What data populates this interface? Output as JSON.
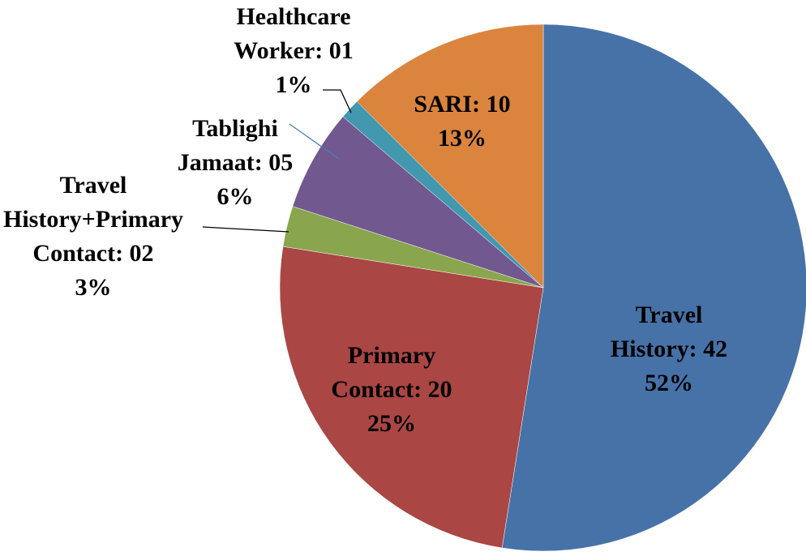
{
  "chart_data": {
    "type": "pie",
    "categories": [
      "Travel History",
      "Primary Contact",
      "Travel History+Primary Contact",
      "Tablighi Jamaat",
      "Healthcare Worker",
      "SARI"
    ],
    "values": [
      42,
      20,
      2,
      5,
      1,
      10
    ],
    "value_labels": [
      "Travel History: 42",
      "Primary Contact: 20",
      "Travel History+Primary Contact: 02",
      "Tablighi Jamaat: 05",
      "Healthcare Worker: 01",
      "SARI: 10"
    ],
    "percent_labels": [
      "52%",
      "25%",
      "3%",
      "6%",
      "1%",
      "13%"
    ],
    "colors": [
      "#4672a8",
      "#aa4643",
      "#89a54e",
      "#71588f",
      "#4198af",
      "#db843d"
    ]
  }
}
